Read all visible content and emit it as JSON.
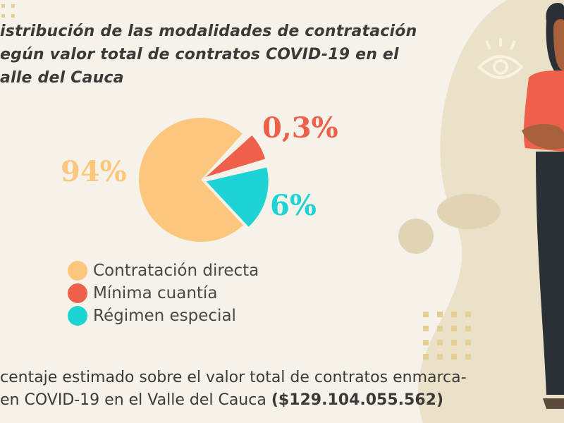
{
  "title": {
    "lines": [
      "istribución de las modalidades de contratación",
      "egún valor total de contratos COVID-19 en el",
      "alle del Cauca"
    ]
  },
  "chart_data": {
    "type": "pie",
    "title": "istribución de las modalidades de contratación egún valor total de contratos COVID-19 en el alle del Cauca",
    "slices": [
      {
        "name": "Contratación directa",
        "value": 94,
        "label": "94%",
        "color": "#fcc77c"
      },
      {
        "name": "Mínima cuantía",
        "value": 0.3,
        "label": "0,3%",
        "color": "#ee6049"
      },
      {
        "name": "Régimen especial",
        "value": 6,
        "label": "6%",
        "color": "#1ed3d4"
      }
    ],
    "legend_position": "bottom"
  },
  "footer": {
    "line1": "centaje estimado sobre el valor total de contratos enmarca-",
    "line2": "en COVID-19 en el Valle del Cauca ",
    "amount": "($129.104.055.562)"
  },
  "colors": {
    "background": "#f6f2e9",
    "blob": "#ebe1c8",
    "title": "#3c3a39"
  }
}
